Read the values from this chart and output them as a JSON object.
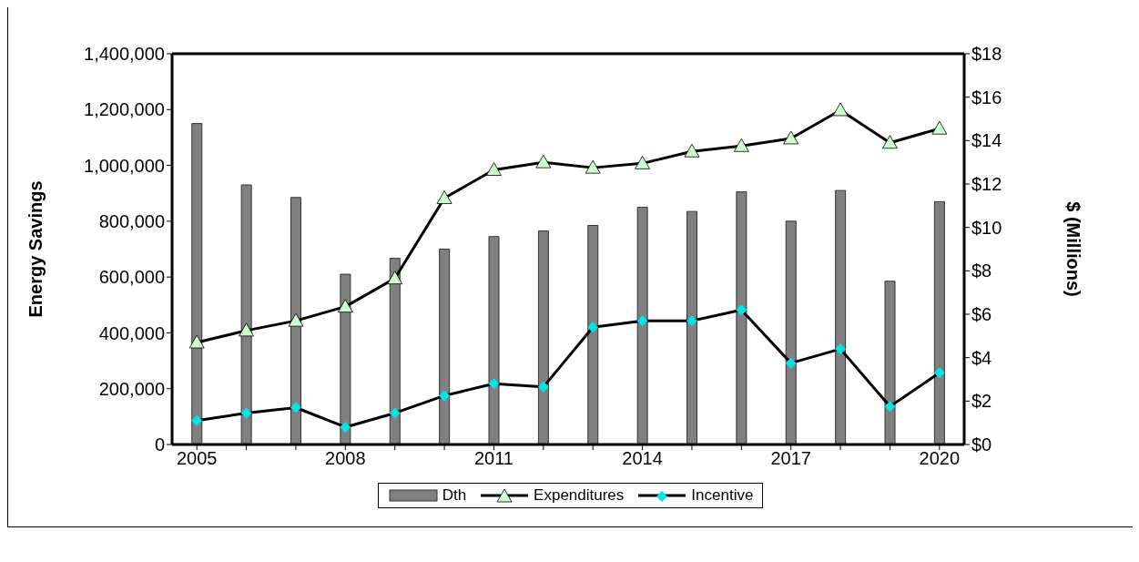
{
  "chart_data": {
    "type": "bar",
    "ylabel": "Energy Savings",
    "y2label": "$ (Millions)",
    "categories": [
      "2005",
      null,
      null,
      "2008",
      null,
      null,
      "2011",
      null,
      null,
      "2014",
      null,
      null,
      "2017",
      null,
      null,
      "2020"
    ],
    "series": [
      {
        "name": "Dth",
        "color": "#808080",
        "values": [
          1150000,
          930000,
          885000,
          610000,
          667000,
          700000,
          745000,
          765000,
          785000,
          850000,
          835000,
          905000,
          800000,
          910000,
          585000,
          870000
        ]
      },
      {
        "name": "Expenditures",
        "type": "line",
        "axis": "y2",
        "marker": "triangle",
        "color": "#ccffcc",
        "values": [
          4.7,
          5.25,
          5.7,
          6.35,
          7.65,
          11.35,
          12.65,
          13.0,
          12.75,
          12.95,
          13.5,
          13.75,
          14.1,
          15.4,
          13.9,
          14.55
        ]
      },
      {
        "name": "Incentive",
        "type": "line",
        "axis": "y2",
        "marker": "diamond",
        "color": "#00e5e5",
        "values": [
          1.1,
          1.45,
          1.7,
          0.8,
          1.45,
          2.25,
          2.8,
          2.65,
          5.4,
          5.7,
          5.7,
          6.2,
          3.75,
          4.4,
          1.75,
          3.3
        ]
      }
    ],
    "ylim": [
      0,
      1400000
    ],
    "yticks": [
      0,
      {
        "value": 200000,
        "label": "200,000"
      },
      {
        "value": 400000,
        "label": "400,000"
      },
      {
        "value": 600000,
        "label": "600,000"
      },
      {
        "value": 800000,
        "label": "800,000"
      },
      {
        "value": 1000000,
        "label": "1,000,000"
      },
      {
        "value": 1200000,
        "label": "1,200,000"
      },
      {
        "value": 1400000,
        "label": "1,400,000"
      }
    ],
    "y2lim": [
      0,
      18
    ],
    "y2ticks": [
      {
        "value": 0,
        "label": "$0"
      },
      {
        "value": 2,
        "label": "$2"
      },
      {
        "value": 4,
        "label": "$4"
      },
      {
        "value": 6,
        "label": "$6"
      },
      {
        "value": 8,
        "label": "$8"
      },
      {
        "value": 10,
        "label": "$10"
      },
      {
        "value": 12,
        "label": "$12"
      },
      {
        "value": 14,
        "label": "$14"
      },
      {
        "value": 16,
        "label": "$16"
      },
      {
        "value": 18,
        "label": "$18"
      }
    ],
    "grid": false,
    "legend": "bottom"
  }
}
